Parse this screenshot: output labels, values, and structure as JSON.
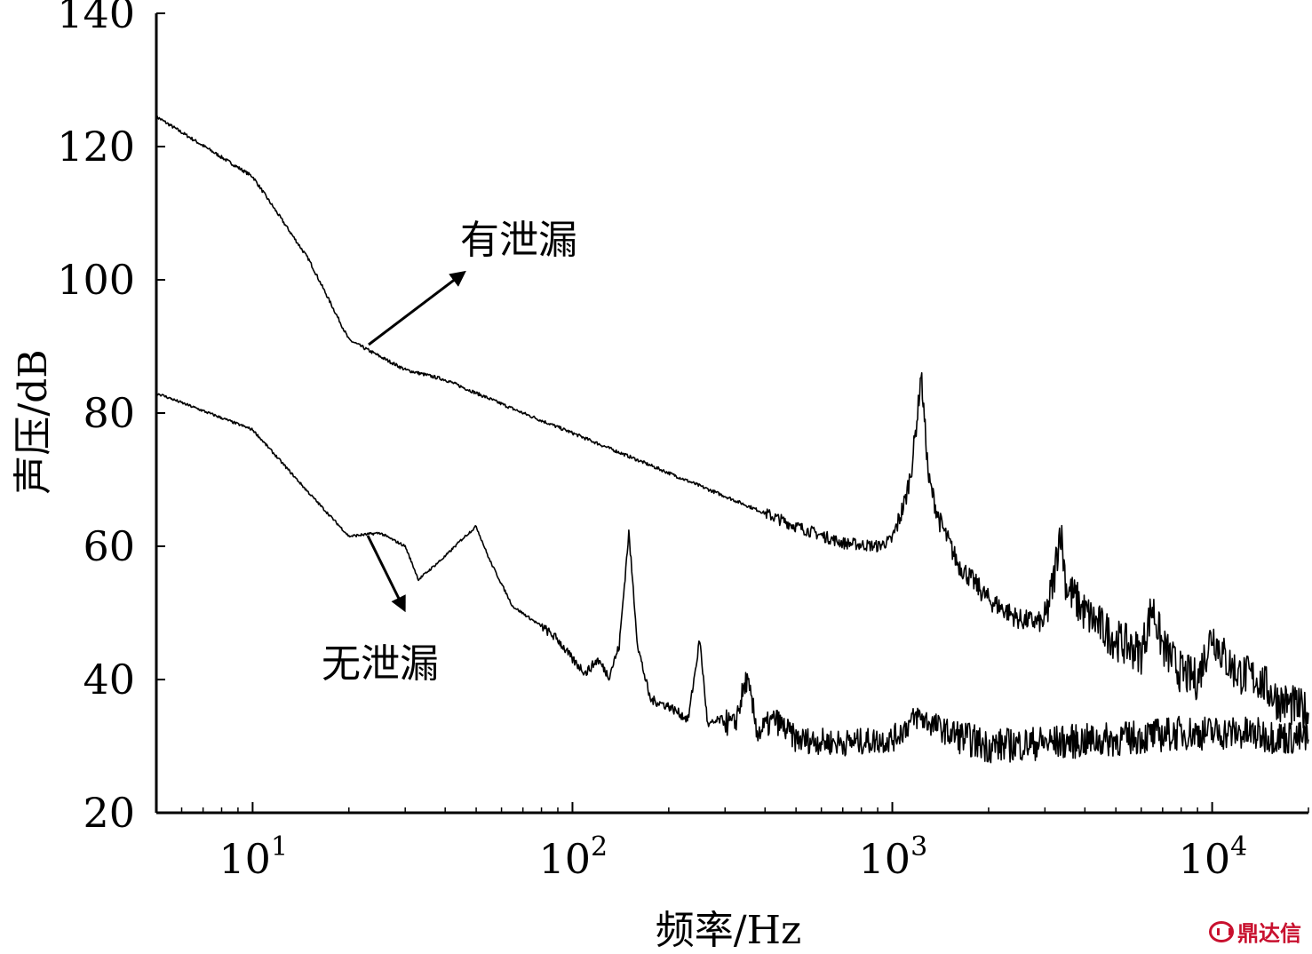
{
  "chart_data": {
    "type": "line",
    "xlabel": "频率/Hz",
    "ylabel": "声压/dB",
    "xscale": "log",
    "xlim": [
      5,
      20000
    ],
    "ylim": [
      20,
      140
    ],
    "yticks": [
      20,
      40,
      60,
      80,
      100,
      120,
      140
    ],
    "xticks": [
      {
        "value": 10,
        "base": "10",
        "exp": "1"
      },
      {
        "value": 100,
        "base": "10",
        "exp": "2"
      },
      {
        "value": 1000,
        "base": "10",
        "exp": "3"
      },
      {
        "value": 10000,
        "base": "10",
        "exp": "4"
      }
    ],
    "grid": false,
    "series": [
      {
        "name": "有泄漏",
        "x": [
          5,
          10,
          15,
          20,
          25,
          30,
          40,
          50,
          70,
          100,
          150,
          200,
          300,
          500,
          700,
          900,
          1000,
          1100,
          1150,
          1200,
          1230,
          1260,
          1300,
          1400,
          1600,
          2000,
          2500,
          3000,
          3200,
          3350,
          3500,
          4000,
          5000,
          6000,
          6500,
          7000,
          8000,
          9000,
          10000,
          11000,
          12000,
          14000,
          16000,
          20000
        ],
        "y": [
          124.5,
          115.5,
          103,
          91,
          88.5,
          86.5,
          85,
          83,
          80,
          77,
          73.5,
          71,
          67.5,
          63,
          60.5,
          60,
          61,
          67,
          72,
          80,
          86,
          79,
          70,
          64,
          57.5,
          52,
          49,
          48.5,
          55,
          63,
          54,
          50,
          46,
          44,
          51,
          45,
          41,
          40,
          47,
          43,
          41,
          40,
          37,
          35
        ]
      },
      {
        "name": "无泄漏",
        "x": [
          5,
          10,
          15,
          20,
          25,
          30,
          33,
          40,
          45,
          50,
          55,
          65,
          80,
          90,
          100,
          110,
          120,
          130,
          140,
          150,
          160,
          175,
          200,
          230,
          250,
          265,
          290,
          320,
          350,
          380,
          430,
          500,
          700,
          1000,
          1200,
          1500,
          2000,
          3000,
          5000,
          8000,
          12000,
          20000
        ],
        "y": [
          83,
          77.5,
          68,
          61.5,
          62,
          60,
          55,
          58.5,
          61,
          63,
          58,
          51,
          48,
          46,
          43,
          41,
          43,
          40.5,
          45,
          62,
          45,
          37,
          36,
          34,
          46,
          33,
          34,
          33,
          40,
          32,
          34,
          31,
          30.5,
          31,
          34.5,
          32,
          30,
          30.5,
          31,
          32,
          32,
          31
        ]
      }
    ],
    "annotations": [
      {
        "text": "有泄漏",
        "series": "有泄漏"
      },
      {
        "text": "无泄漏",
        "series": "无泄漏"
      }
    ]
  },
  "watermark": {
    "text": "鼎达信",
    "icon": "brand-logo-icon",
    "color": "#c8102e"
  }
}
